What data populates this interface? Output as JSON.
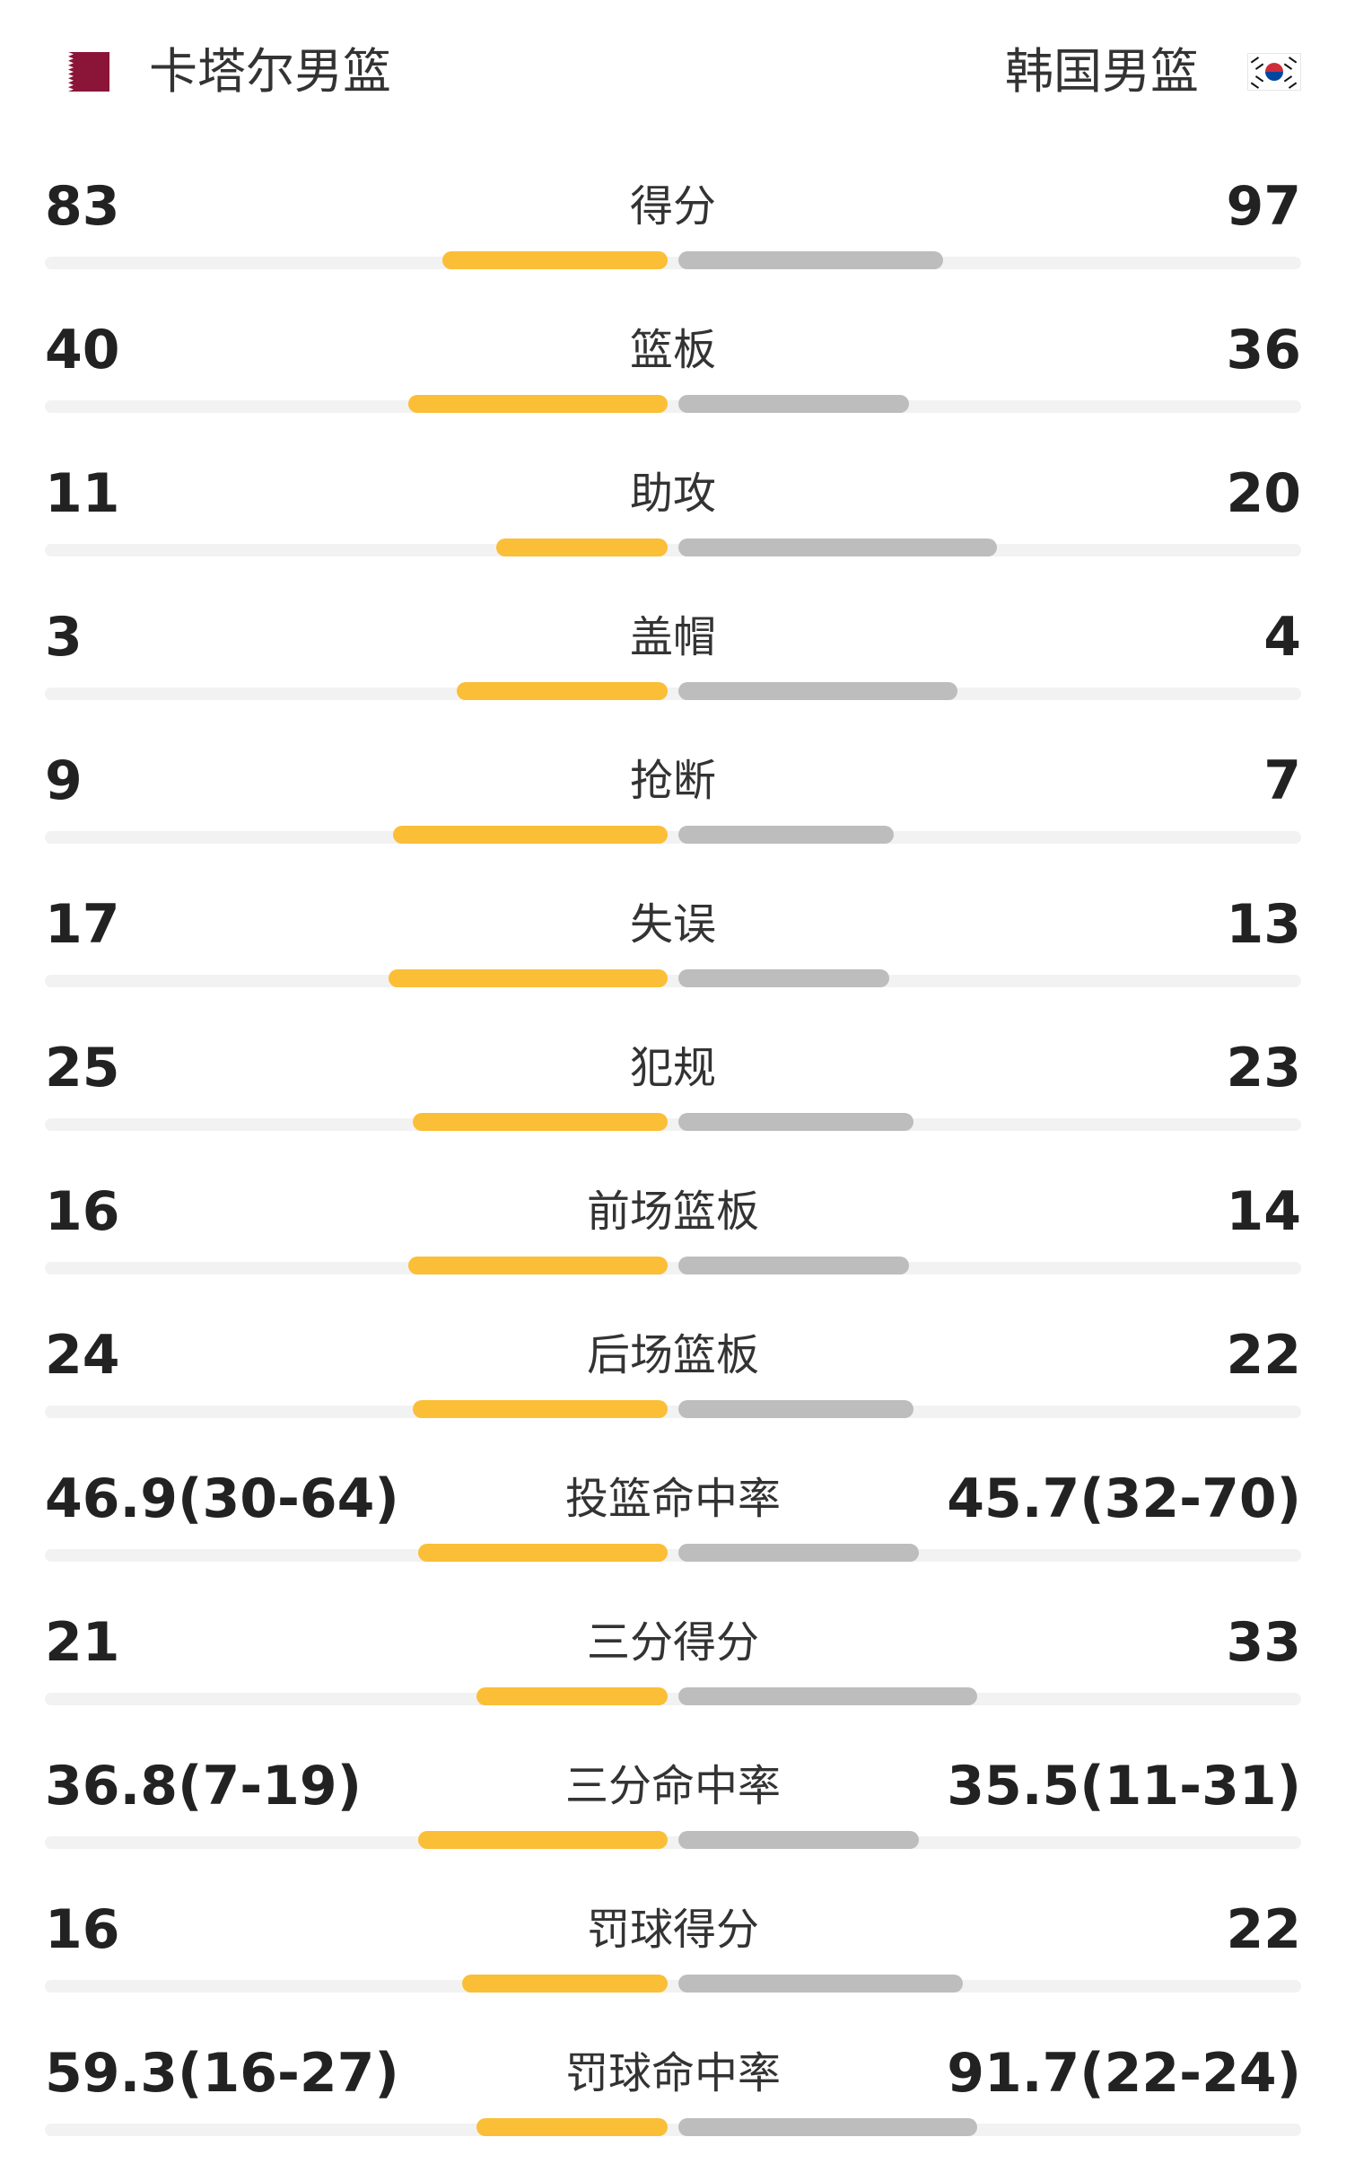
{
  "header": {
    "home_team": {
      "name": "卡塔尔男篮",
      "flag_icon": "qatar-flag-icon",
      "flag_colors": [
        "#8a1538",
        "#ffffff"
      ]
    },
    "away_team": {
      "name": "韩国男篮",
      "flag_icon": "south-korea-flag-icon",
      "flag_colors": [
        "#ffffff",
        "#cd2e3a",
        "#0047a0",
        "#111111"
      ]
    }
  },
  "colors": {
    "home_bar": "#fbbe37",
    "away_bar": "#bdbdbd",
    "track": "#f2f2f2"
  },
  "stats": [
    {
      "label": "得分",
      "home": "83",
      "away": "97",
      "home_fill": 0.46,
      "away_fill": 0.54
    },
    {
      "label": "篮板",
      "home": "40",
      "away": "36",
      "home_fill": 0.53,
      "away_fill": 0.47
    },
    {
      "label": "助攻",
      "home": "11",
      "away": "20",
      "home_fill": 0.35,
      "away_fill": 0.65
    },
    {
      "label": "盖帽",
      "home": "3",
      "away": "4",
      "home_fill": 0.43,
      "away_fill": 0.57
    },
    {
      "label": "抢断",
      "home": "9",
      "away": "7",
      "home_fill": 0.56,
      "away_fill": 0.44
    },
    {
      "label": "失误",
      "home": "17",
      "away": "13",
      "home_fill": 0.57,
      "away_fill": 0.43
    },
    {
      "label": "犯规",
      "home": "25",
      "away": "23",
      "home_fill": 0.52,
      "away_fill": 0.48
    },
    {
      "label": "前场篮板",
      "home": "16",
      "away": "14",
      "home_fill": 0.53,
      "away_fill": 0.47
    },
    {
      "label": "后场篮板",
      "home": "24",
      "away": "22",
      "home_fill": 0.52,
      "away_fill": 0.48
    },
    {
      "label": "投篮命中率",
      "home": "46.9(30-64)",
      "away": "45.7(32-70)",
      "home_fill": 0.51,
      "away_fill": 0.49
    },
    {
      "label": "三分得分",
      "home": "21",
      "away": "33",
      "home_fill": 0.39,
      "away_fill": 0.61
    },
    {
      "label": "三分命中率",
      "home": "36.8(7-19)",
      "away": "35.5(11-31)",
      "home_fill": 0.51,
      "away_fill": 0.49
    },
    {
      "label": "罚球得分",
      "home": "16",
      "away": "22",
      "home_fill": 0.42,
      "away_fill": 0.58
    },
    {
      "label": "罚球命中率",
      "home": "59.3(16-27)",
      "away": "91.7(22-24)",
      "home_fill": 0.39,
      "away_fill": 0.61
    }
  ]
}
